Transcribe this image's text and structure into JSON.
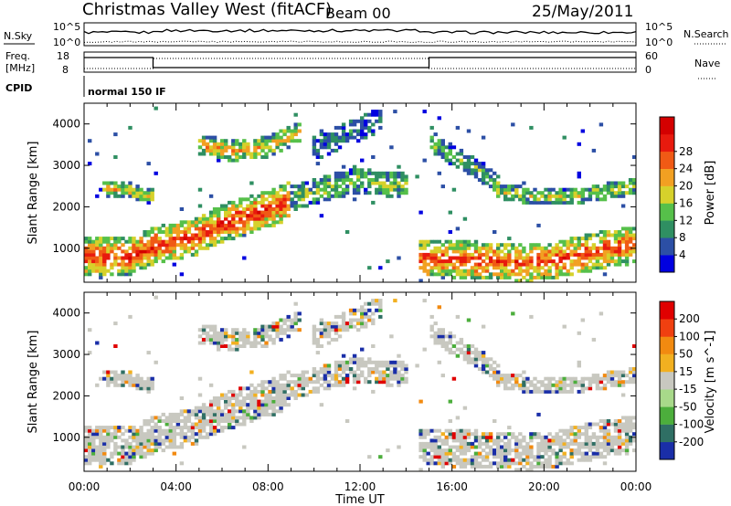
{
  "header": {
    "title": "Christmas Valley West (fitACF)",
    "beam": "Beam 00",
    "date": "25/May/2011"
  },
  "summary_panels": {
    "nsky_label": "N.Sky",
    "nsky_ticks": [
      "10^5",
      "10^0"
    ],
    "nsky_ticks_right": [
      "10^5",
      "10^0"
    ],
    "nsearch_label": "N.Search",
    "freq_label_line1": "Freq.",
    "freq_label_line2": "[MHz]",
    "freq_ticks": [
      "18",
      "8"
    ],
    "nave_label": "Nave",
    "nave_ticks": [
      "60",
      "0"
    ],
    "cpid_label": "CPID",
    "cpid_text": "normal 150 IF"
  },
  "chart_data": [
    {
      "type": "heatmap",
      "title": "",
      "xlabel": "Time UT",
      "ylabel": "Slant Range [km]",
      "x_ticks": [
        "00:00",
        "04:00",
        "08:00",
        "12:00",
        "16:00",
        "20:00",
        "00:00"
      ],
      "xlim_hours": [
        0,
        24
      ],
      "y_ticks": [
        1000,
        2000,
        3000,
        4000
      ],
      "ylim": [
        180,
        4500
      ],
      "colorbar": {
        "label": "Power [dB]",
        "ticks": [
          "4",
          "8",
          "12",
          "16",
          "20",
          "24",
          "28"
        ],
        "colors": [
          "#0000e0",
          "#2c4fa5",
          "#2f8f62",
          "#56c04a",
          "#d6d12b",
          "#f2a022",
          "#f05a15",
          "#e81a0e",
          "#d40000"
        ]
      },
      "echo_bands": [
        {
          "name": "near_range_strong",
          "t": [
            0,
            2,
            3,
            5,
            6,
            8,
            9
          ],
          "r": [
            800,
            820,
            1050,
            1300,
            1600,
            1950,
            2150
          ],
          "width": 450,
          "level": 0.85
        },
        {
          "name": "rising_arc_a",
          "t": [
            0.8,
            2,
            3
          ],
          "r": [
            2450,
            2400,
            2250
          ],
          "width": 180,
          "level": 0.55
        },
        {
          "name": "rising_arc_b",
          "t": [
            5,
            6.5,
            8,
            9.5
          ],
          "r": [
            3500,
            3350,
            3450,
            3850
          ],
          "width": 250,
          "level": 0.6
        },
        {
          "name": "mid_arc",
          "t": [
            7,
            9,
            10.5,
            12,
            14
          ],
          "r": [
            1950,
            2200,
            2450,
            2650,
            2500
          ],
          "width": 300,
          "level": 0.4
        },
        {
          "name": "high_patch",
          "t": [
            10,
            11,
            12,
            13
          ],
          "r": [
            3400,
            3650,
            3900,
            4100
          ],
          "width": 300,
          "level": 0.15
        },
        {
          "name": "evening_near",
          "t": [
            14.5,
            16,
            17.5,
            19,
            20.5,
            22,
            24
          ],
          "r": [
            750,
            750,
            700,
            650,
            700,
            900,
            1100
          ],
          "width": 450,
          "level": 0.8
        },
        {
          "name": "evening_far",
          "t": [
            18,
            19.5,
            21,
            22.5,
            24
          ],
          "r": [
            2400,
            2250,
            2250,
            2350,
            2500
          ],
          "width": 200,
          "level": 0.45
        },
        {
          "name": "evening_arc",
          "t": [
            15,
            16.5,
            18
          ],
          "r": [
            3600,
            3100,
            2600
          ],
          "width": 250,
          "level": 0.35
        }
      ]
    },
    {
      "type": "heatmap",
      "title": "",
      "xlabel": "Time UT",
      "ylabel": "Slant Range [km]",
      "x_ticks": [
        "00:00",
        "04:00",
        "08:00",
        "12:00",
        "16:00",
        "20:00",
        "00:00"
      ],
      "xlim_hours": [
        0,
        24
      ],
      "y_ticks": [
        1000,
        2000,
        3000,
        4000
      ],
      "ylim": [
        180,
        4500
      ],
      "colorbar": {
        "label": "Velocity [m s^-1]",
        "ticks": [
          "200",
          "100",
          "50",
          "15",
          "-15",
          "-50",
          "-100",
          "-200"
        ],
        "colors": [
          "#1a2ea8",
          "#2f6f64",
          "#4cae3c",
          "#a8d98a",
          "#c8c8c0",
          "#f2b020",
          "#f28a10",
          "#f04010",
          "#e00000"
        ]
      },
      "dominant_color": "#c8c8c0"
    }
  ]
}
